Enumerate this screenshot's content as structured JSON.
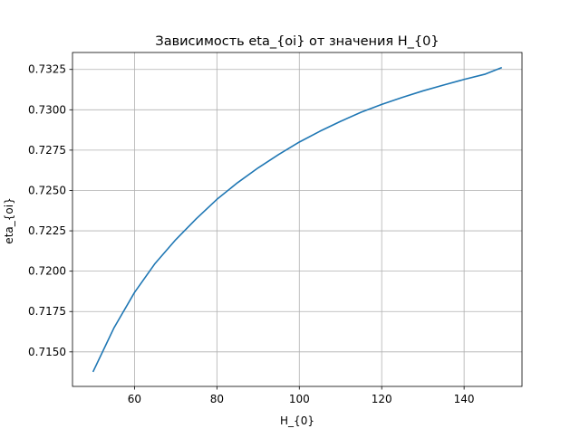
{
  "chart_data": {
    "type": "line",
    "title": "Зависимость eta_{oi} от значения H_{0}",
    "xlabel": "H_{0}",
    "ylabel": "eta_{oi}",
    "xlim": [
      44.95,
      154.05
    ],
    "ylim": [
      0.71286,
      0.73355
    ],
    "xticks": [
      60,
      80,
      100,
      120,
      140
    ],
    "xtick_labels": [
      "60",
      "80",
      "100",
      "120",
      "140"
    ],
    "yticks": [
      0.715,
      0.7175,
      0.72,
      0.7225,
      0.725,
      0.7275,
      0.73,
      0.7325
    ],
    "ytick_labels": [
      "0.7150",
      "0.7175",
      "0.7200",
      "0.7225",
      "0.7250",
      "0.7275",
      "0.7300",
      "0.7325"
    ],
    "grid": true,
    "line_color": "#1f77b4",
    "series": [
      {
        "x": [
          50,
          55,
          60,
          65,
          70,
          75,
          80,
          85,
          90,
          95,
          100,
          105,
          110,
          115,
          120,
          125,
          130,
          135,
          140,
          145,
          149
        ],
        "y": [
          0.7138,
          0.71648,
          0.71868,
          0.72048,
          0.72195,
          0.72325,
          0.72445,
          0.72548,
          0.7264,
          0.72723,
          0.728,
          0.72867,
          0.72928,
          0.72985,
          0.73033,
          0.73077,
          0.73117,
          0.73153,
          0.73188,
          0.7322,
          0.7326
        ]
      }
    ]
  }
}
